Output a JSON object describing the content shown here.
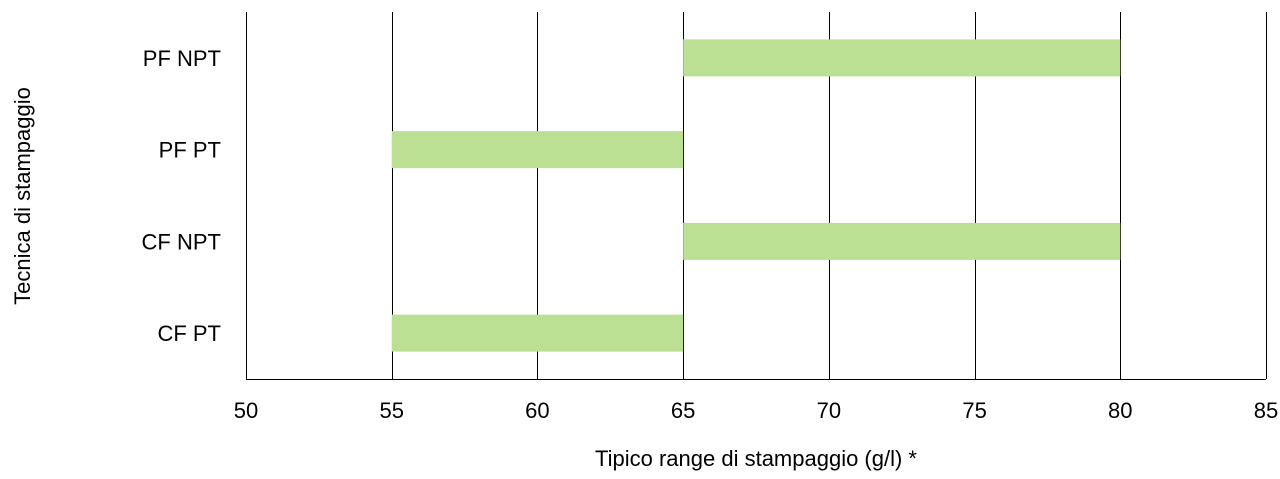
{
  "chart_data": {
    "type": "bar",
    "orientation": "horizontal-range",
    "categories": [
      "PF NPT",
      "PF PT",
      "CF NPT",
      "CF PT"
    ],
    "series": [
      {
        "ranges": [
          [
            65,
            80
          ],
          [
            55,
            65
          ],
          [
            65,
            80
          ],
          [
            55,
            65
          ]
        ],
        "color": "#bbe094"
      }
    ],
    "xlabel": "Tipico range di stampaggio (g/l) *",
    "ylabel": "Tecnica di stampaggio",
    "xlim": [
      50,
      85
    ],
    "xticks": [
      50,
      55,
      60,
      65,
      70,
      75,
      80,
      85
    ],
    "grid": "vertical",
    "legend": "none"
  }
}
